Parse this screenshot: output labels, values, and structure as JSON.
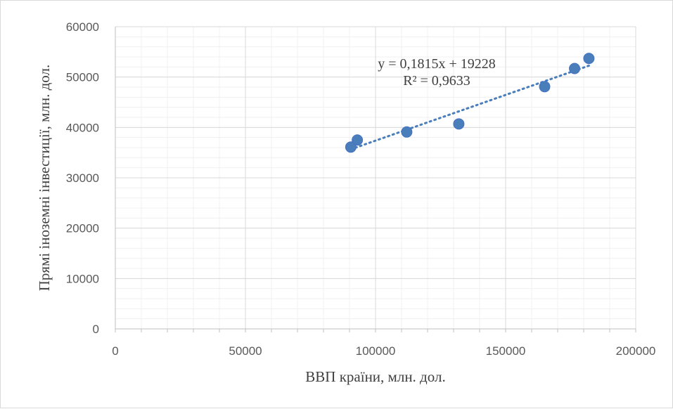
{
  "chart_data": {
    "type": "scatter",
    "title": "",
    "xlabel": "ВВП країни, млн. дол.",
    "ylabel": "Прямі іноземні інвестиції, млн. дол.",
    "xlim": [
      0,
      200000
    ],
    "ylim": [
      0,
      60000
    ],
    "x_ticks": [
      0,
      50000,
      100000,
      150000,
      200000
    ],
    "y_ticks": [
      0,
      10000,
      20000,
      30000,
      40000,
      50000,
      60000
    ],
    "x_tick_labels": [
      "0",
      "50000",
      "100000",
      "150000",
      "200000"
    ],
    "y_tick_labels": [
      "0",
      "10000",
      "20000",
      "30000",
      "40000",
      "50000",
      "60000"
    ],
    "grid": "major and minor",
    "legend": "none",
    "series": [
      {
        "points": [
          {
            "x": 90500,
            "y": 36100
          },
          {
            "x": 93000,
            "y": 37500
          },
          {
            "x": 112000,
            "y": 39100
          },
          {
            "x": 132000,
            "y": 40700
          },
          {
            "x": 165000,
            "y": 48100
          },
          {
            "x": 176500,
            "y": 51700
          },
          {
            "x": 182000,
            "y": 53700
          }
        ],
        "color": "#4a7ebb"
      }
    ],
    "trendline": {
      "type": "linear",
      "slope": 0.1815,
      "intercept": 19228,
      "x_range": [
        90500,
        182000
      ],
      "color": "#4a7ebb",
      "style": "dotted",
      "equation_label": "y = 0,1815x + 19228",
      "r2_label": "R² = 0,9633"
    }
  }
}
